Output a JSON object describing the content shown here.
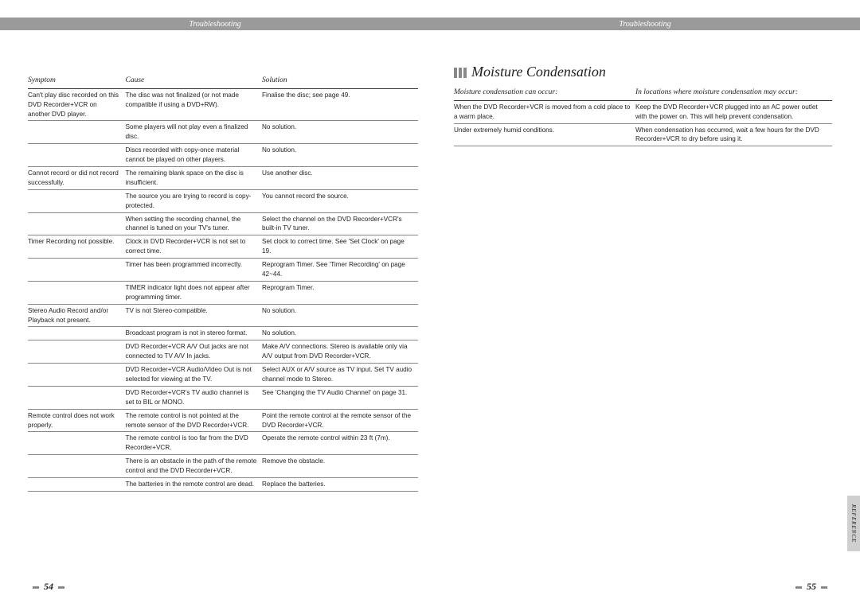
{
  "header_left": "Troubleshooting",
  "header_right": "Troubleshooting",
  "page_left_num": "54",
  "page_right_num": "55",
  "side_tab": "REFERENCE",
  "section_heading": "Moisture Condensation",
  "left_table": {
    "headers": [
      "Symptom",
      "Cause",
      "Solution"
    ],
    "rows": [
      [
        "Can't play disc recorded on this DVD Recorder+VCR on another DVD player.",
        "The disc was not finalized (or not made compatible if using a DVD+RW).",
        "Finalise the disc; see page 49."
      ],
      [
        "",
        "Some players will not play even a finalized disc.",
        "No solution."
      ],
      [
        "",
        "Discs recorded with copy-once material cannot be played on other players.",
        "No solution."
      ],
      [
        "Cannot record or did not record successfully.",
        "The remaining blank space on the disc is insufficient.",
        "Use another disc."
      ],
      [
        "",
        "The source you are trying to record is copy-protected.",
        "You cannot record the source."
      ],
      [
        "",
        "When setting the recording channel, the channel is tuned on your TV's tuner.",
        "Select the channel on the DVD Recorder+VCR's built-in TV tuner."
      ],
      [
        "Timer Recording not possible.",
        "Clock in DVD Recorder+VCR is not set to correct time.",
        "Set clock to correct time. See 'Set Clock' on page 19."
      ],
      [
        "",
        "Timer has been programmed incorrectly.",
        "Reprogram Timer. See 'Timer Recording' on page 42~44."
      ],
      [
        "",
        "TIMER indicator light does not appear after programming timer.",
        "Reprogram Timer."
      ],
      [
        "Stereo Audio Record and/or Playback not present.",
        "TV is not Stereo-compatible.",
        "No solution."
      ],
      [
        "",
        "Broadcast program is not in stereo format.",
        "No solution."
      ],
      [
        "",
        "DVD Recorder+VCR A/V Out jacks are not connected to TV A/V In jacks.",
        "Make A/V connections. Stereo is available only via A/V output from DVD Recorder+VCR."
      ],
      [
        "",
        "DVD Recorder+VCR Audio/Video Out is not selected for viewing at the TV.",
        "Select AUX or A/V source as TV input. Set TV audio channel mode to Stereo."
      ],
      [
        "",
        "DVD Recorder+VCR's TV audio channel is set to BIL or MONO.",
        "See 'Changing the TV Audio Channel' on page 31."
      ],
      [
        "Remote control does not work properly.",
        "The remote control is not pointed at the remote sensor of the DVD Recorder+VCR.",
        "Point the remote control at the remote sensor of the DVD Recorder+VCR."
      ],
      [
        "",
        "The remote control is too far from the DVD Recorder+VCR.",
        "Operate the remote control within 23 ft (7m)."
      ],
      [
        "",
        "There is an obstacle in the path of the remote control and the DVD Recorder+VCR.",
        "Remove the obstacle."
      ],
      [
        "",
        "The batteries in the remote control are dead.",
        "Replace the batteries."
      ]
    ]
  },
  "right_table": {
    "headers": [
      "Moisture condensation can occur:",
      "In locations where moisture condensation may occur:"
    ],
    "rows": [
      [
        "When the DVD Recorder+VCR is moved from a cold place to a warm place.",
        "Keep the DVD Recorder+VCR plugged into an AC power outlet with the power on. This will help prevent condensation."
      ],
      [
        "Under extremely humid conditions.",
        "When condensation has occurred, wait a few hours for the DVD Recorder+VCR to dry before using it."
      ]
    ]
  }
}
